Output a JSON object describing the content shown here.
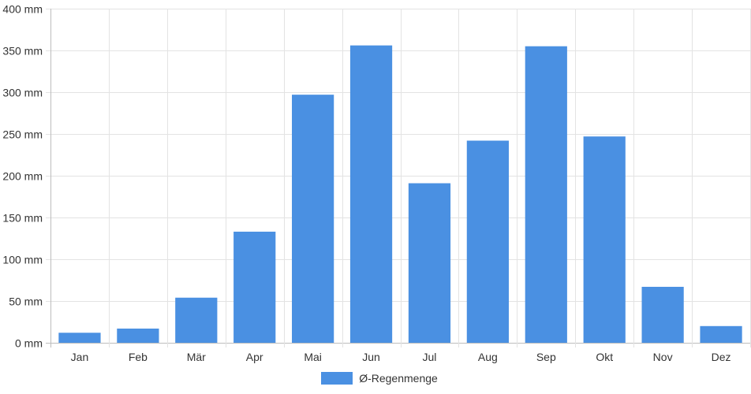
{
  "colors": {
    "bar": "#4a90e2",
    "grid": "#e3e3e3",
    "axis": "#bdbdbd",
    "text": "#333333"
  },
  "chart_data": {
    "type": "bar",
    "categories": [
      "Jan",
      "Feb",
      "Mär",
      "Apr",
      "Mai",
      "Jun",
      "Jul",
      "Aug",
      "Sep",
      "Okt",
      "Nov",
      "Dez"
    ],
    "series": [
      {
        "name": "Ø-Regenmenge",
        "values": [
          12,
          17,
          54,
          133,
          297,
          356,
          191,
          242,
          355,
          247,
          67,
          20
        ]
      }
    ],
    "ylim": [
      0,
      400
    ],
    "yticks": [
      0,
      50,
      100,
      150,
      200,
      250,
      300,
      350,
      400
    ],
    "y_unit": "mm",
    "grid": true,
    "legend_position": "bottom"
  }
}
